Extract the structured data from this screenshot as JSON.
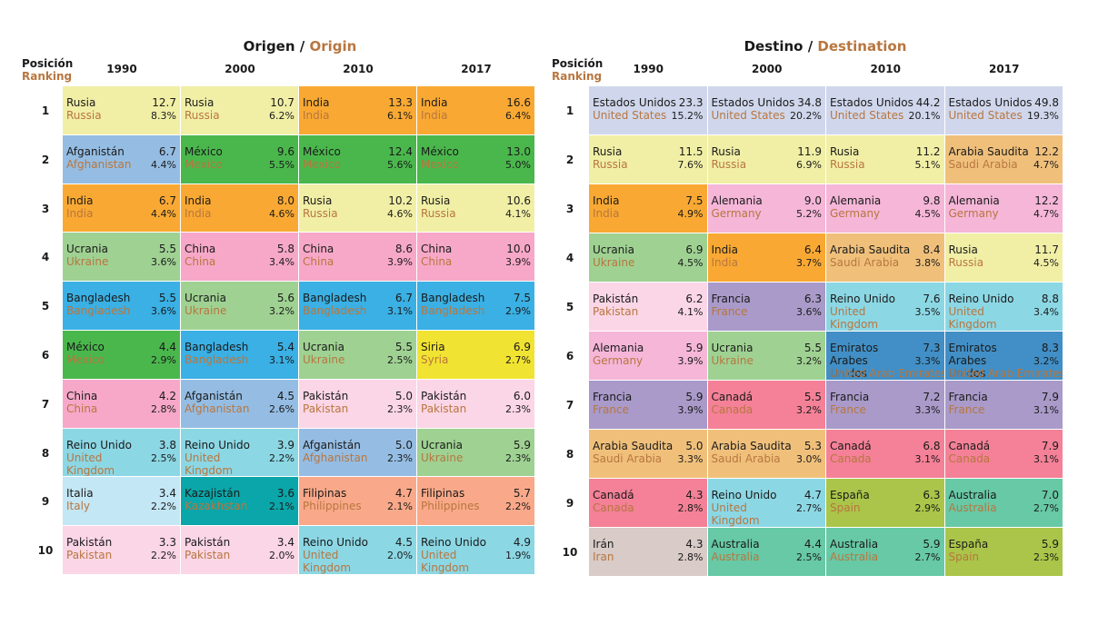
{
  "origin": {
    "title_es": "Origen",
    "separator": " / ",
    "title_en": "Origin",
    "rank_label_es": "Posición",
    "rank_label_en": "Ranking",
    "years": [
      "1990",
      "2000",
      "2010",
      "2017"
    ],
    "ranks": [
      "1",
      "2",
      "3",
      "4",
      "5",
      "6",
      "7",
      "8",
      "9",
      "10"
    ]
  },
  "destination": {
    "title_es": "Destino",
    "separator": " / ",
    "title_en": "Destination",
    "rank_label_es": "Posición",
    "rank_label_en": "Ranking",
    "years": [
      "1990",
      "2000",
      "2010",
      "2017"
    ],
    "ranks": [
      "1",
      "2",
      "3",
      "4",
      "5",
      "6",
      "7",
      "8",
      "9",
      "10"
    ]
  },
  "colors": {
    "Russia": "#f1efa5",
    "Afghanistan": "#95bde3",
    "India": "#f9a933",
    "Ukraine": "#9fd192",
    "Bangladesh": "#3ab0e4",
    "Mexico": "#4ab74c",
    "China": "#f7a8c8",
    "United Kingdom": "#8cd7e4",
    "Italy": "#c4e7f5",
    "Pakistan": "#fbd6e6",
    "Kazakhstan": "#0aa6a9",
    "Philippines": "#f9a989",
    "Syria": "#f1e331",
    "United States": "#d0d7ec",
    "Germany": "#f5b6d8",
    "France": "#a99ac9",
    "Saudi Arabia": "#f0c07b",
    "Canada": "#f48197",
    "Iran": "#d8cbc8",
    "Australia": "#67c9a6",
    "United Arab Emirates": "#418fc6",
    "Spain": "#aac549"
  },
  "chart_data": [
    {
      "type": "table",
      "title": "Origen / Origin",
      "columns": [
        "1990",
        "2000",
        "2010",
        "2017"
      ],
      "rows": [
        [
          {
            "es": "Rusia",
            "en": "Russia",
            "value": 12.7,
            "pct": "8.3%"
          },
          {
            "es": "Rusia",
            "en": "Russia",
            "value": 10.7,
            "pct": "6.2%"
          },
          {
            "es": "India",
            "en": "India",
            "value": 13.3,
            "pct": "6.1%"
          },
          {
            "es": "India",
            "en": "India",
            "value": 16.6,
            "pct": "6.4%"
          }
        ],
        [
          {
            "es": "Afganistán",
            "en": "Afghanistan",
            "value": 6.7,
            "pct": "4.4%"
          },
          {
            "es": "México",
            "en": "Mexico",
            "value": 9.6,
            "pct": "5.5%"
          },
          {
            "es": "México",
            "en": "Mexico",
            "value": 12.4,
            "pct": "5.6%"
          },
          {
            "es": "México",
            "en": "Mexico",
            "value": 13.0,
            "pct": "5.0%"
          }
        ],
        [
          {
            "es": "India",
            "en": "India",
            "value": 6.7,
            "pct": "4.4%"
          },
          {
            "es": "India",
            "en": "India",
            "value": 8.0,
            "pct": "4.6%"
          },
          {
            "es": "Rusia",
            "en": "Russia",
            "value": 10.2,
            "pct": "4.6%"
          },
          {
            "es": "Rusia",
            "en": "Russia",
            "value": 10.6,
            "pct": "4.1%"
          }
        ],
        [
          {
            "es": "Ucrania",
            "en": "Ukraine",
            "value": 5.5,
            "pct": "3.6%"
          },
          {
            "es": "China",
            "en": "China",
            "value": 5.8,
            "pct": "3.4%"
          },
          {
            "es": "China",
            "en": "China",
            "value": 8.6,
            "pct": "3.9%"
          },
          {
            "es": "China",
            "en": "China",
            "value": 10.0,
            "pct": "3.9%"
          }
        ],
        [
          {
            "es": "Bangladesh",
            "en": "Bangladesh",
            "value": 5.5,
            "pct": "3.6%"
          },
          {
            "es": "Ucrania",
            "en": "Ukraine",
            "value": 5.6,
            "pct": "3.2%"
          },
          {
            "es": "Bangladesh",
            "en": "Bangladesh",
            "value": 6.7,
            "pct": "3.1%"
          },
          {
            "es": "Bangladesh",
            "en": "Bangladesh",
            "value": 7.5,
            "pct": "2.9%"
          }
        ],
        [
          {
            "es": "México",
            "en": "Mexico",
            "value": 4.4,
            "pct": "2.9%"
          },
          {
            "es": "Bangladesh",
            "en": "Bangladesh",
            "value": 5.4,
            "pct": "3.1%"
          },
          {
            "es": "Ucrania",
            "en": "Ukraine",
            "value": 5.5,
            "pct": "2.5%"
          },
          {
            "es": "Siria",
            "en": "Syria",
            "value": 6.9,
            "pct": "2.7%"
          }
        ],
        [
          {
            "es": "China",
            "en": "China",
            "value": 4.2,
            "pct": "2.8%"
          },
          {
            "es": "Afganistán",
            "en": "Afghanistan",
            "value": 4.5,
            "pct": "2.6%"
          },
          {
            "es": "Pakistán",
            "en": "Pakistan",
            "value": 5.0,
            "pct": "2.3%"
          },
          {
            "es": "Pakistán",
            "en": "Pakistan",
            "value": 6.0,
            "pct": "2.3%"
          }
        ],
        [
          {
            "es": "Reino Unido",
            "en": "United\nKingdom",
            "value": 3.8,
            "pct": "2.5%"
          },
          {
            "es": "Reino Unido",
            "en": "United\nKingdom",
            "value": 3.9,
            "pct": "2.2%"
          },
          {
            "es": "Afganistán",
            "en": "Afghanistan",
            "value": 5.0,
            "pct": "2.3%"
          },
          {
            "es": "Ucrania",
            "en": "Ukraine",
            "value": 5.9,
            "pct": "2.3%"
          }
        ],
        [
          {
            "es": "Italia",
            "en": "Italy",
            "value": 3.4,
            "pct": "2.2%"
          },
          {
            "es": "Kazajistán",
            "en": "Kazakhstan",
            "value": 3.6,
            "pct": "2.1%"
          },
          {
            "es": "Filipinas",
            "en": "Philippines",
            "value": 4.7,
            "pct": "2.1%"
          },
          {
            "es": "Filipinas",
            "en": "Philippines",
            "value": 5.7,
            "pct": "2.2%"
          }
        ],
        [
          {
            "es": "Pakistán",
            "en": "Pakistan",
            "value": 3.3,
            "pct": "2.2%"
          },
          {
            "es": "Pakistán",
            "en": "Pakistan",
            "value": 3.4,
            "pct": "2.0%"
          },
          {
            "es": "Reino Unido",
            "en": "United\nKingdom",
            "value": 4.5,
            "pct": "2.0%"
          },
          {
            "es": "Reino Unido",
            "en": "United\nKingdom",
            "value": 4.9,
            "pct": "1.9%"
          }
        ]
      ]
    },
    {
      "type": "table",
      "title": "Destino / Destination",
      "columns": [
        "1990",
        "2000",
        "2010",
        "2017"
      ],
      "rows": [
        [
          {
            "es": "Estados Unidos",
            "en": "United States",
            "value": 23.3,
            "pct": "15.2%"
          },
          {
            "es": "Estados Unidos",
            "en": "United States",
            "value": 34.8,
            "pct": "20.2%"
          },
          {
            "es": "Estados Unidos",
            "en": "United States",
            "value": 44.2,
            "pct": "20.1%"
          },
          {
            "es": "Estados Unidos",
            "en": "United States",
            "value": 49.8,
            "pct": "19.3%"
          }
        ],
        [
          {
            "es": "Rusia",
            "en": "Russia",
            "value": 11.5,
            "pct": "7.6%"
          },
          {
            "es": "Rusia",
            "en": "Russia",
            "value": 11.9,
            "pct": "6.9%"
          },
          {
            "es": "Rusia",
            "en": "Russia",
            "value": 11.2,
            "pct": "5.1%"
          },
          {
            "es": "Arabia Saudita",
            "en": "Saudi Arabia",
            "value": 12.2,
            "pct": "4.7%"
          }
        ],
        [
          {
            "es": "India",
            "en": "India",
            "value": 7.5,
            "pct": "4.9%"
          },
          {
            "es": "Alemania",
            "en": "Germany",
            "value": 9.0,
            "pct": "5.2%"
          },
          {
            "es": "Alemania",
            "en": "Germany",
            "value": 9.8,
            "pct": "4.5%"
          },
          {
            "es": "Alemania",
            "en": "Germany",
            "value": 12.2,
            "pct": "4.7%"
          }
        ],
        [
          {
            "es": "Ucrania",
            "en": "Ukraine",
            "value": 6.9,
            "pct": "4.5%"
          },
          {
            "es": "India",
            "en": "India",
            "value": 6.4,
            "pct": "3.7%"
          },
          {
            "es": "Arabia Saudita",
            "en": "Saudi Arabia",
            "value": 8.4,
            "pct": "3.8%"
          },
          {
            "es": "Rusia",
            "en": "Russia",
            "value": 11.7,
            "pct": "4.5%"
          }
        ],
        [
          {
            "es": "Pakistán",
            "en": "Pakistan",
            "value": 6.2,
            "pct": "4.1%"
          },
          {
            "es": "Francia",
            "en": "France",
            "value": 6.3,
            "pct": "3.6%"
          },
          {
            "es": "Reino Unido",
            "en": "United\nKingdom",
            "value": 7.6,
            "pct": "3.5%"
          },
          {
            "es": "Reino Unido",
            "en": "United\nKingdom",
            "value": 8.8,
            "pct": "3.4%"
          }
        ],
        [
          {
            "es": "Alemania",
            "en": "Germany",
            "value": 5.9,
            "pct": "3.9%"
          },
          {
            "es": "Ucrania",
            "en": "Ukraine",
            "value": 5.5,
            "pct": "3.2%"
          },
          {
            "es": "Emiratos Arabes\nUnidos",
            "en": "United Arab Emirates",
            "value": 7.3,
            "pct": "3.3%"
          },
          {
            "es": "Emiratos Arabes\nUnidos",
            "en": "United Arab Emirates",
            "value": 8.3,
            "pct": "3.2%"
          }
        ],
        [
          {
            "es": "Francia",
            "en": "France",
            "value": 5.9,
            "pct": "3.9%"
          },
          {
            "es": "Canadá",
            "en": "Canada",
            "value": 5.5,
            "pct": "3.2%"
          },
          {
            "es": "Francia",
            "en": "France",
            "value": 7.2,
            "pct": "3.3%"
          },
          {
            "es": "Francia",
            "en": "France",
            "value": 7.9,
            "pct": "3.1%"
          }
        ],
        [
          {
            "es": "Arabia Saudita",
            "en": "Saudi Arabia",
            "value": 5.0,
            "pct": "3.3%"
          },
          {
            "es": "Arabia Saudita",
            "en": "Saudi Arabia",
            "value": 5.3,
            "pct": "3.0%"
          },
          {
            "es": "Canadá",
            "en": "Canada",
            "value": 6.8,
            "pct": "3.1%"
          },
          {
            "es": "Canadá",
            "en": "Canada",
            "value": 7.9,
            "pct": "3.1%"
          }
        ],
        [
          {
            "es": "Canadá",
            "en": "Canada",
            "value": 4.3,
            "pct": "2.8%"
          },
          {
            "es": "Reino Unido",
            "en": "United\nKingdom",
            "value": 4.7,
            "pct": "2.7%"
          },
          {
            "es": "España",
            "en": "Spain",
            "value": 6.3,
            "pct": "2.9%"
          },
          {
            "es": "Australia",
            "en": "Australia",
            "value": 7.0,
            "pct": "2.7%"
          }
        ],
        [
          {
            "es": "Irán",
            "en": "Iran",
            "value": 4.3,
            "pct": "2.8%"
          },
          {
            "es": "Australia",
            "en": "Australia",
            "value": 4.4,
            "pct": "2.5%"
          },
          {
            "es": "Australia",
            "en": "Australia",
            "value": 5.9,
            "pct": "2.7%"
          },
          {
            "es": "España",
            "en": "Spain",
            "value": 5.9,
            "pct": "2.3%"
          }
        ]
      ]
    }
  ]
}
